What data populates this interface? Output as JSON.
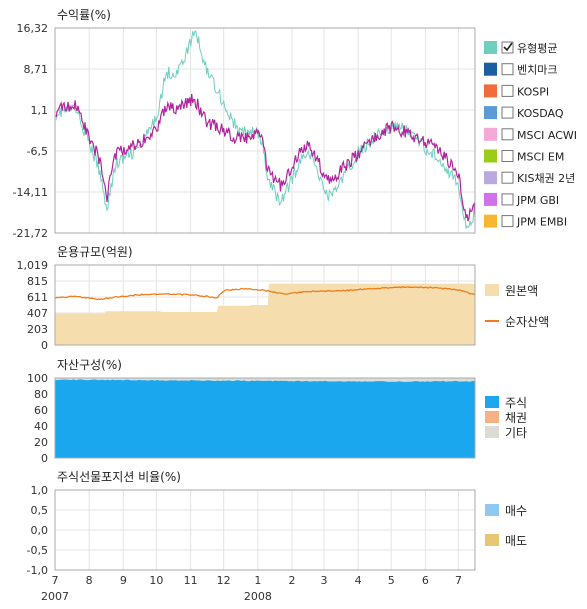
{
  "chart_data": [
    {
      "type": "line",
      "title": "수익률(%)",
      "yticks": [
        "16,32",
        "8,71",
        "1,1",
        "-6,5",
        "-14,11",
        "-21,72"
      ],
      "ylim": [
        -21.72,
        16.32
      ],
      "grid": true,
      "legend_placement": "right",
      "series": [
        {
          "name": "유형평균",
          "checked": true,
          "color": "#6fcfbf",
          "x": [
            "2007-07-02",
            "2007-07-20",
            "2007-08-10",
            "2007-08-17",
            "2007-08-25",
            "2007-09-15",
            "2007-09-30",
            "2007-10-10",
            "2007-10-20",
            "2007-10-31",
            "2007-11-05",
            "2007-11-15",
            "2007-11-25",
            "2007-12-05",
            "2007-12-15",
            "2007-12-30",
            "2008-01-05",
            "2008-01-10",
            "2008-01-22",
            "2008-02-05",
            "2008-02-15",
            "2008-03-05",
            "2008-03-17",
            "2008-04-01",
            "2008-04-15",
            "2008-05-01",
            "2008-05-15",
            "2008-06-01",
            "2008-06-15",
            "2008-07-01",
            "2008-07-08",
            "2008-07-16"
          ],
          "y": [
            0.5,
            1.5,
            -10,
            -17,
            -9,
            -6,
            -1,
            8,
            8,
            13,
            16,
            9,
            5,
            0.5,
            -3,
            -3,
            -5,
            -12,
            -16,
            -10,
            -6,
            -15,
            -12,
            -7,
            -4,
            -2,
            -2.5,
            -6,
            -8,
            -13,
            -21,
            -18
          ]
        },
        {
          "name": "벤치마크",
          "checked": false,
          "color": "#1c5fa0",
          "x": [],
          "y": []
        },
        {
          "name": "KOSPI",
          "checked": false,
          "color": "#f26b3a",
          "x": [],
          "y": []
        },
        {
          "name": "KOSDAQ",
          "checked": false,
          "color": "#5b9bd5",
          "x": [],
          "y": []
        },
        {
          "name": "MSCI ACWI",
          "checked": false,
          "color": "#f4a9d8",
          "x": [],
          "y": []
        },
        {
          "name": "MSCI EM",
          "checked": false,
          "color": "#9bcc1a",
          "x": [],
          "y": []
        },
        {
          "name": "KIS채권 2년",
          "checked": false,
          "color": "#b9a9e0",
          "x": [],
          "y": []
        },
        {
          "name": "JPM GBI",
          "checked": false,
          "color": "#d272ea",
          "x": [],
          "y": []
        },
        {
          "name": "JPM EMBI",
          "checked": false,
          "color": "#f7b731",
          "x": [],
          "y": []
        },
        {
          "name": "",
          "checked": false,
          "color": "#b0259e",
          "x": [
            "2007-07-02",
            "2007-07-20",
            "2007-08-10",
            "2007-08-17",
            "2007-08-25",
            "2007-09-15",
            "2007-09-30",
            "2007-10-10",
            "2007-10-20",
            "2007-10-31",
            "2007-11-05",
            "2007-11-15",
            "2007-11-25",
            "2007-12-05",
            "2007-12-15",
            "2007-12-30",
            "2008-01-05",
            "2008-01-10",
            "2008-01-22",
            "2008-02-05",
            "2008-02-15",
            "2008-03-05",
            "2008-03-17",
            "2008-04-01",
            "2008-04-15",
            "2008-05-01",
            "2008-05-15",
            "2008-06-01",
            "2008-06-15",
            "2008-07-01",
            "2008-07-08",
            "2008-07-16"
          ],
          "y": [
            1,
            2,
            -8,
            -15,
            -7,
            -5,
            -3,
            2,
            1,
            3,
            3,
            -1,
            -2,
            -3,
            -4.5,
            -3.5,
            -4,
            -10,
            -13,
            -8,
            -5,
            -12,
            -10,
            -7,
            -4,
            -2,
            -3,
            -5,
            -6.5,
            -11,
            -19,
            -17
          ]
        }
      ]
    },
    {
      "type": "area",
      "title": "운용규모(억원)",
      "yticks": [
        "1,019",
        "815",
        "611",
        "407",
        "203",
        "0"
      ],
      "ylim": [
        0,
        1019
      ],
      "grid": true,
      "legend_placement": "right",
      "series": [
        {
          "name": "원본액",
          "kind": "area",
          "color": "#f6ddae",
          "x": [
            "2007-07-01",
            "2007-08-15",
            "2007-08-16",
            "2007-10-05",
            "2007-10-06",
            "2007-11-25",
            "2007-11-26",
            "2007-12-25",
            "2007-12-26",
            "2008-01-10",
            "2008-01-11",
            "2008-07-16"
          ],
          "y": [
            400,
            400,
            430,
            430,
            420,
            420,
            500,
            500,
            510,
            510,
            780,
            780
          ]
        },
        {
          "name": "순자산액",
          "kind": "line",
          "color": "#f07d1a",
          "x": [
            "2007-07-01",
            "2007-07-20",
            "2007-08-10",
            "2007-08-25",
            "2007-09-15",
            "2007-10-10",
            "2007-10-31",
            "2007-11-15",
            "2007-11-25",
            "2007-12-01",
            "2007-12-20",
            "2008-01-05",
            "2008-01-25",
            "2008-02-15",
            "2008-03-17",
            "2008-04-15",
            "2008-05-15",
            "2008-06-10",
            "2008-07-01",
            "2008-07-16"
          ],
          "y": [
            600,
            620,
            580,
            610,
            640,
            650,
            640,
            620,
            600,
            690,
            720,
            700,
            650,
            680,
            690,
            720,
            740,
            730,
            700,
            640
          ]
        }
      ]
    },
    {
      "type": "area",
      "title": "자산구성(%)",
      "yticks": [
        "100",
        "80",
        "60",
        "40",
        "20",
        "0"
      ],
      "ylim": [
        0,
        100
      ],
      "grid": true,
      "legend_placement": "right",
      "series": [
        {
          "name": "주식",
          "color": "#1aa7ee",
          "x": [
            "2007-07-01",
            "2007-09-01",
            "2007-11-01",
            "2008-01-01",
            "2008-03-01",
            "2008-05-01",
            "2008-07-16"
          ],
          "y": [
            98,
            97.5,
            97,
            96.5,
            96,
            95.5,
            96
          ]
        },
        {
          "name": "채권",
          "color": "#f4b183",
          "x": [],
          "y": []
        },
        {
          "name": "기타",
          "color": "#dcdcd4",
          "x": [
            "2007-07-01",
            "2007-09-01",
            "2007-11-01",
            "2008-01-01",
            "2008-03-01",
            "2008-05-01",
            "2008-07-16"
          ],
          "y": [
            2,
            2.5,
            3,
            3.5,
            4,
            4.5,
            4
          ]
        }
      ]
    },
    {
      "type": "bar",
      "title": "주식선물포지션 비율(%)",
      "yticks": [
        "1,0",
        "0,5",
        "0,0",
        "-0,5",
        "-1,0"
      ],
      "ylim": [
        -1,
        1
      ],
      "grid": true,
      "legend_placement": "right",
      "series": [
        {
          "name": "매수",
          "color": "#91c8f2",
          "values": []
        },
        {
          "name": "매도",
          "color": "#e8c672",
          "values": []
        }
      ]
    }
  ],
  "x_axis": {
    "start": "2007-07-01",
    "end": "2008-07-16",
    "month_labels": [
      {
        "label": "7",
        "date": "2007-07-01"
      },
      {
        "label": "8",
        "date": "2007-08-01"
      },
      {
        "label": "9",
        "date": "2007-09-01"
      },
      {
        "label": "10",
        "date": "2007-10-01"
      },
      {
        "label": "11",
        "date": "2007-11-01"
      },
      {
        "label": "12",
        "date": "2007-12-01"
      },
      {
        "label": "1",
        "date": "2008-01-01"
      },
      {
        "label": "2",
        "date": "2008-02-01"
      },
      {
        "label": "3",
        "date": "2008-03-01"
      },
      {
        "label": "4",
        "date": "2008-04-01"
      },
      {
        "label": "5",
        "date": "2008-05-01"
      },
      {
        "label": "6",
        "date": "2008-06-01"
      },
      {
        "label": "7",
        "date": "2008-07-01"
      }
    ],
    "year_labels": [
      {
        "label": "2007",
        "date": "2007-07-01"
      },
      {
        "label": "2008",
        "date": "2008-01-01"
      }
    ]
  }
}
